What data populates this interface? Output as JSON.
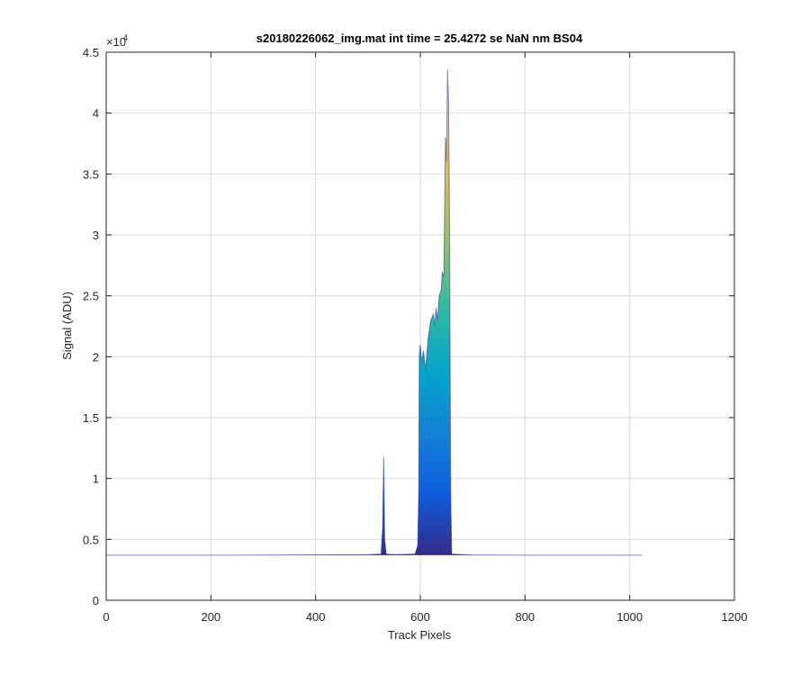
{
  "chart_data": {
    "type": "area",
    "title": "s20180226062_img.mat int time = 25.4272 se  NaN nm BS04",
    "xlabel": "Track Pixels",
    "ylabel": "Signal (ADU)",
    "xlim": [
      0,
      1200
    ],
    "ylim": [
      0,
      45000
    ],
    "x_ticks": [
      0,
      200,
      400,
      600,
      800,
      1000,
      1200
    ],
    "y_ticks": [
      0,
      5000,
      10000,
      15000,
      20000,
      25000,
      30000,
      35000,
      40000,
      45000
    ],
    "x_tick_labels": [
      "0",
      "200",
      "400",
      "600",
      "800",
      "1000",
      "1200"
    ],
    "y_tick_labels": [
      "0",
      "0.5",
      "1",
      "1.5",
      "2",
      "2.5",
      "3",
      "3.5",
      "4",
      "4.5"
    ],
    "y_exponent_base": "×10",
    "y_exponent_power": "4",
    "grid": true,
    "colormap": [
      "#352a87",
      "#0f5cdd",
      "#1481d6",
      "#06a4ca",
      "#2eb7a4",
      "#87bf77",
      "#d1bb59",
      "#fec832",
      "#f9fb0e"
    ],
    "baseline_color": "#2b2f8f",
    "x": [
      0,
      100,
      200,
      300,
      400,
      500,
      525,
      528,
      530,
      532,
      535,
      550,
      590,
      595,
      597,
      598,
      600,
      603,
      606,
      610,
      615,
      620,
      625,
      628,
      630,
      633,
      636,
      640,
      642,
      645,
      648,
      650,
      652,
      654,
      656,
      658,
      660,
      700,
      800,
      900,
      1000,
      1024
    ],
    "y": [
      3700,
      3700,
      3700,
      3710,
      3730,
      3750,
      3800,
      6000,
      11800,
      5000,
      3800,
      3760,
      3800,
      4500,
      9000,
      20000,
      21000,
      19500,
      20500,
      19000,
      21500,
      23000,
      23500,
      22500,
      24000,
      23000,
      25000,
      25500,
      27000,
      26500,
      38000,
      36000,
      43600,
      41000,
      30000,
      9000,
      3800,
      3720,
      3700,
      3700,
      3700,
      3700
    ]
  }
}
